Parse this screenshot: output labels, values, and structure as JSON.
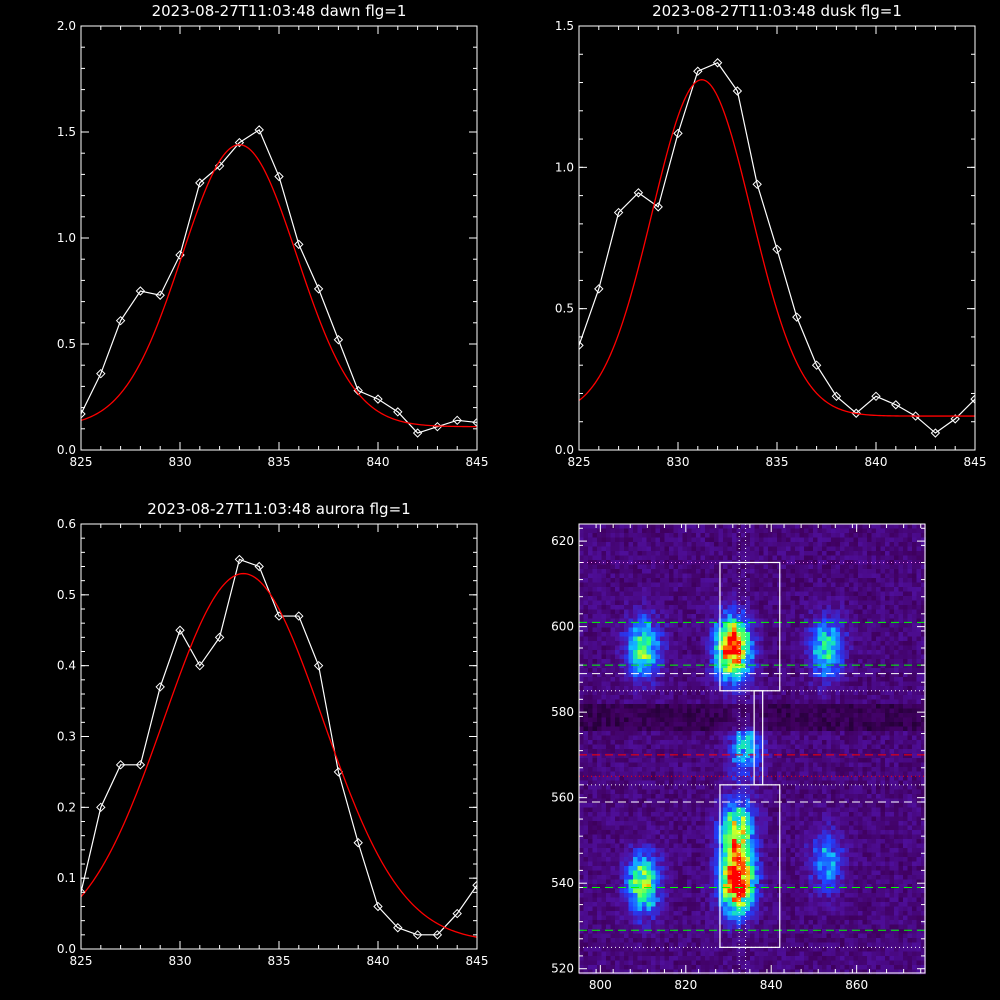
{
  "chart_data": [
    {
      "type": "line",
      "title": "2023-08-27T11:03:48 dawn flg=1",
      "xlim": [
        825,
        845
      ],
      "ylim": [
        0,
        2.0
      ],
      "xticks": [
        "825",
        "830",
        "835",
        "840",
        "845"
      ],
      "xtick_values": [
        825,
        830,
        835,
        840,
        845
      ],
      "yticks": [
        "0.0",
        "0.5",
        "1.0",
        "1.5",
        "2.0"
      ],
      "ytick_values": [
        0,
        0.5,
        1.0,
        1.5,
        2.0
      ],
      "series": [
        {
          "color": "#ffffff",
          "marker": "diamond",
          "x": [
            825,
            826,
            827,
            828,
            829,
            830,
            831,
            832,
            833,
            834,
            835,
            836,
            837,
            838,
            839,
            840,
            841,
            842,
            843,
            844,
            845
          ],
          "y": [
            0.17,
            0.36,
            0.61,
            0.75,
            0.73,
            0.92,
            1.26,
            1.34,
            1.45,
            1.51,
            1.29,
            0.97,
            0.76,
            0.52,
            0.28,
            0.24,
            0.18,
            0.08,
            0.11,
            0.14,
            0.13
          ]
        },
        {
          "color": "#ff0000",
          "marker": "none",
          "fit": {
            "base": 0.11,
            "amp": 1.33,
            "center": 833.0,
            "sigma": 2.9
          }
        }
      ]
    },
    {
      "type": "line",
      "title": "2023-08-27T11:03:48 dusk flg=1",
      "xlim": [
        825,
        845
      ],
      "ylim": [
        0,
        1.5
      ],
      "xticks": [
        "825",
        "830",
        "835",
        "840",
        "845"
      ],
      "xtick_values": [
        825,
        830,
        835,
        840,
        845
      ],
      "yticks": [
        "0.0",
        "0.5",
        "1.0",
        "1.5"
      ],
      "ytick_values": [
        0,
        0.5,
        1.0,
        1.5
      ],
      "series": [
        {
          "color": "#ffffff",
          "marker": "diamond",
          "x": [
            825,
            826,
            827,
            828,
            829,
            830,
            831,
            832,
            833,
            834,
            835,
            836,
            837,
            838,
            839,
            840,
            841,
            842,
            843,
            844,
            845
          ],
          "y": [
            0.37,
            0.57,
            0.84,
            0.91,
            0.86,
            1.12,
            1.34,
            1.37,
            1.27,
            0.94,
            0.71,
            0.47,
            0.3,
            0.19,
            0.13,
            0.19,
            0.16,
            0.12,
            0.06,
            0.11,
            0.18
          ]
        },
        {
          "color": "#ff0000",
          "marker": "none",
          "fit": {
            "base": 0.12,
            "amp": 1.19,
            "center": 831.2,
            "sigma": 2.5
          }
        }
      ]
    },
    {
      "type": "line",
      "title": "2023-08-27T11:03:48 aurora flg=1",
      "xlim": [
        825,
        845
      ],
      "ylim": [
        0,
        0.6
      ],
      "xticks": [
        "825",
        "830",
        "835",
        "840",
        "845"
      ],
      "xtick_values": [
        825,
        830,
        835,
        840,
        845
      ],
      "yticks": [
        "0.0",
        "0.1",
        "0.2",
        "0.3",
        "0.4",
        "0.5",
        "0.6"
      ],
      "ytick_values": [
        0,
        0.1,
        0.2,
        0.3,
        0.4,
        0.5,
        0.6
      ],
      "series": [
        {
          "color": "#ffffff",
          "marker": "diamond",
          "x": [
            825,
            826,
            827,
            828,
            829,
            830,
            831,
            832,
            833,
            834,
            835,
            836,
            837,
            838,
            839,
            840,
            841,
            842,
            843,
            844,
            845
          ],
          "y": [
            0.08,
            0.2,
            0.26,
            0.26,
            0.37,
            0.45,
            0.4,
            0.44,
            0.55,
            0.54,
            0.47,
            0.47,
            0.4,
            0.25,
            0.15,
            0.06,
            0.03,
            0.02,
            0.02,
            0.05,
            0.09
          ]
        },
        {
          "color": "#ff0000",
          "marker": "none",
          "fit": {
            "base": 0.01,
            "amp": 0.52,
            "center": 833.2,
            "sigma": 4.0
          }
        }
      ]
    },
    {
      "type": "heatmap",
      "title": "",
      "xlim": [
        795,
        876
      ],
      "ylim": [
        519,
        624
      ],
      "xticks": [
        "800",
        "820",
        "840",
        "860"
      ],
      "xtick_values": [
        800,
        820,
        840,
        860
      ],
      "yticks": [
        "520",
        "540",
        "560",
        "580",
        "600",
        "620"
      ],
      "ytick_values": [
        520,
        540,
        560,
        580,
        600,
        620
      ],
      "colormap": [
        "#000000",
        "#400060",
        "#5010a0",
        "#2040ff",
        "#10c0ff",
        "#20ff80",
        "#e0ff20",
        "#ff8000",
        "#ff0000"
      ],
      "hot_spots": [
        {
          "x": 810,
          "y": 595,
          "peak": 0.55
        },
        {
          "x": 831,
          "y": 595,
          "peak": 1.0
        },
        {
          "x": 853,
          "y": 595,
          "peak": 0.45
        },
        {
          "x": 810,
          "y": 540,
          "peak": 0.6
        },
        {
          "x": 832,
          "y": 540,
          "peak": 1.0
        },
        {
          "x": 832,
          "y": 552,
          "peak": 0.7
        },
        {
          "x": 853,
          "y": 545,
          "peak": 0.35
        },
        {
          "x": 834,
          "y": 572,
          "peak": 0.4
        }
      ],
      "boxes": [
        {
          "x0": 828,
          "x1": 842,
          "y0": 585,
          "y1": 615
        },
        {
          "x0": 828,
          "x1": 842,
          "y0": 525,
          "y1": 563
        },
        {
          "x0": 836,
          "x1": 838,
          "y0": 563,
          "y1": 585
        }
      ],
      "vertical_lines": [
        {
          "x": 832.5,
          "color": "#ffffff",
          "style": "dotted"
        },
        {
          "x": 834.0,
          "color": "#ffffff",
          "style": "dotted"
        }
      ],
      "horizontal_lines": [
        {
          "y": 615,
          "color": "#ff80ff",
          "style": "dotted"
        },
        {
          "y": 601,
          "color": "#00ff00",
          "style": "dashed"
        },
        {
          "y": 591,
          "color": "#00ff00",
          "style": "dashed"
        },
        {
          "y": 589,
          "color": "#ffffff",
          "style": "dashed"
        },
        {
          "y": 585,
          "color": "#ffffff",
          "style": "dotted"
        },
        {
          "y": 570,
          "color": "#ff0000",
          "style": "dashed"
        },
        {
          "y": 565,
          "color": "#ff0000",
          "style": "dotted"
        },
        {
          "y": 563,
          "color": "#ffffff",
          "style": "dotted"
        },
        {
          "y": 559,
          "color": "#ffffff",
          "style": "dashed"
        },
        {
          "y": 539,
          "color": "#00ff00",
          "style": "dashed"
        },
        {
          "y": 529,
          "color": "#00ff00",
          "style": "dashed"
        },
        {
          "y": 525,
          "color": "#ffffff",
          "style": "dotted"
        }
      ]
    }
  ]
}
